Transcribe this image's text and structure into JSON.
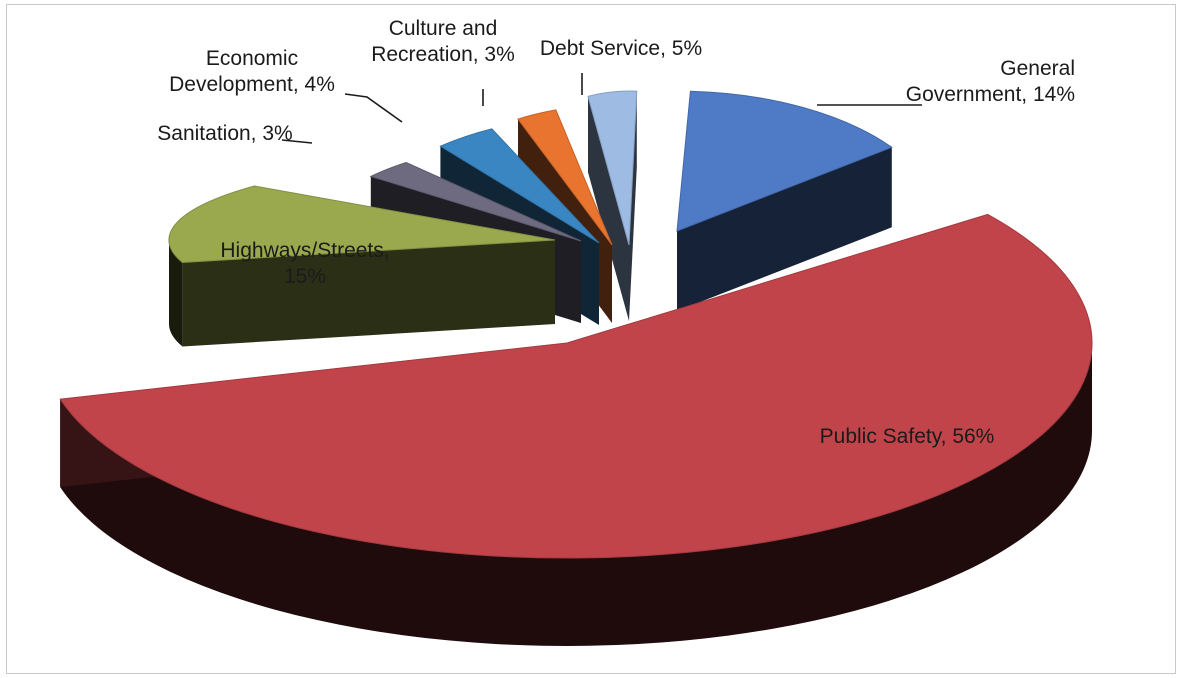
{
  "chart_data": {
    "type": "pie",
    "style": "3d-exploded",
    "unit": "%",
    "slices": [
      {
        "key": "general-government",
        "label_lines": [
          "General",
          "Government, 14%"
        ],
        "value": 14,
        "color": "#4f7ac6"
      },
      {
        "key": "public-safety",
        "label_lines": [
          "Public Safety, 56%"
        ],
        "value": 56,
        "color": "#c0444a"
      },
      {
        "key": "highways-streets",
        "label_lines": [
          "Highways/Streets,",
          "15%"
        ],
        "value": 15,
        "color": "#9aa84e"
      },
      {
        "key": "sanitation",
        "label_lines": [
          "Sanitation, 3%"
        ],
        "value": 3,
        "color": "#6e6a80"
      },
      {
        "key": "economic-development",
        "label_lines": [
          "Economic",
          "Development, 4%"
        ],
        "value": 4,
        "color": "#3a86c2"
      },
      {
        "key": "culture-recreation",
        "label_lines": [
          "Culture and",
          "Recreation, 3%"
        ],
        "value": 3,
        "color": "#e9742f"
      },
      {
        "key": "debt-service",
        "label_lines": [
          "Debt Service, 5%"
        ],
        "value": 5,
        "color": "#9dbbe3"
      }
    ]
  }
}
